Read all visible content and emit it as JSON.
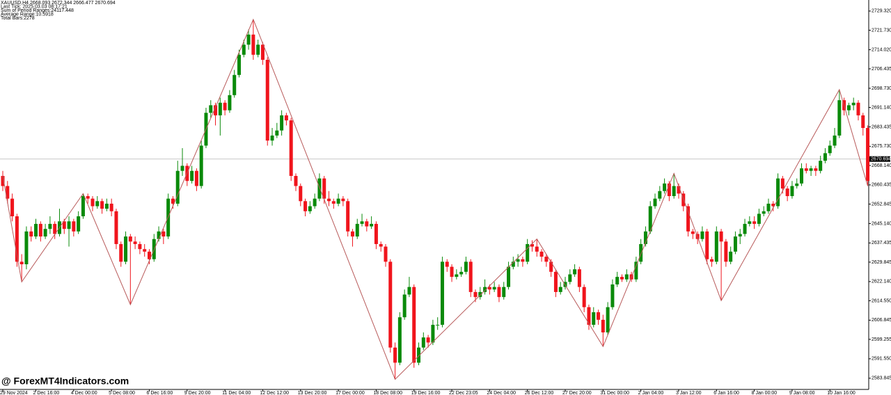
{
  "chart_data": {
    "type": "candlestick",
    "header": [
      "XAUUSD,H4  2668.093 2672.344 2666.477 2670.694",
      "Last Tick: 2025.03.03 08:17:21",
      "Sum of Period Ranges:24117.448",
      "Average Range:10.5918",
      "Total Bars:2278"
    ],
    "watermark": "@ ForexMT4Indicators.com",
    "up_color": "#0a8a0a",
    "down_color": "#f0141c",
    "zigzag_color": "#b85a5a",
    "current_price": 2670.694,
    "ylim": [
      2579.4,
      2733.7
    ],
    "yticks": [
      {
        "value": 2729.32,
        "label": "2729.320"
      },
      {
        "value": 2721.73,
        "label": "2721.730"
      },
      {
        "value": 2714.02,
        "label": "2714.020"
      },
      2706.435,
      {
        "value": 2698.73,
        "label": "2698.730"
      },
      {
        "value": 2691.14,
        "label": "2691.140"
      },
      2683.435,
      {
        "value": 2675.73,
        "label": "2675.730"
      },
      {
        "value": 2668.14,
        "label": "2668.140"
      },
      2660.435,
      2652.845,
      {
        "value": 2645.14,
        "label": "2645.140"
      },
      2637.435,
      2629.845,
      {
        "value": 2622.14,
        "label": "2622.140"
      },
      {
        "value": 2614.55,
        "label": "2614.550"
      },
      2606.845,
      2599.255,
      {
        "value": 2591.55,
        "label": "2591.550"
      },
      2583.845
    ],
    "xticks": [
      {
        "value": 0,
        "label": "29 Nov 2024"
      },
      {
        "value": 7,
        "label": "2 Dec 16:00"
      },
      {
        "value": 15,
        "label": "4 Dec 00:00"
      },
      {
        "value": 23,
        "label": "5 Dec 08:00"
      },
      {
        "value": 31,
        "label": "6 Dec 16:00"
      },
      {
        "value": 39,
        "label": "9 Dec 20:00"
      },
      {
        "value": 47,
        "label": "11 Dec 04:00"
      },
      {
        "value": 55,
        "label": "12 Dec 12:00"
      },
      {
        "value": 63,
        "label": "13 Dec 20:00"
      },
      {
        "value": 71,
        "label": "17 Dec 00:00"
      },
      {
        "value": 79,
        "label": "18 Dec 08:00"
      },
      {
        "value": 87,
        "label": "19 Dec 16:00"
      },
      {
        "value": 95,
        "label": "22 Dec 23:05"
      },
      {
        "value": 103,
        "label": "24 Dec 04:00"
      },
      {
        "value": 111,
        "label": "26 Dec 12:00"
      },
      {
        "value": 119,
        "label": "27 Dec 20:00"
      },
      {
        "value": 127,
        "label": "31 Dec 00:00"
      },
      {
        "value": 135,
        "label": "2 Jan 04:00"
      },
      {
        "value": 143,
        "label": "3 Jan 12:00"
      },
      {
        "value": 151,
        "label": "6 Jan 16:00"
      },
      {
        "value": 159,
        "label": "8 Jan 00:00"
      },
      {
        "value": 167,
        "label": "9 Jan 08:00"
      },
      {
        "value": 175,
        "label": "10 Jan 16:00"
      }
    ],
    "zigzag": {
      "x": [
        0,
        4,
        17,
        27,
        53,
        83,
        113,
        127,
        142,
        152,
        177,
        183
      ],
      "values": [
        2664,
        2622,
        2657,
        2613,
        2726,
        2583.4,
        2639,
        2596.4,
        2665,
        2614.6,
        2698.2,
        2660
      ]
    },
    "ohlc": [
      [
        2664,
        2666,
        2658,
        2660
      ],
      [
        2660,
        2662,
        2653,
        2655
      ],
      [
        2655,
        2657,
        2646,
        2648
      ],
      [
        2648,
        2649,
        2628,
        2630
      ],
      [
        2630,
        2633,
        2622,
        2629
      ],
      [
        2629,
        2644,
        2627,
        2642
      ],
      [
        2642,
        2644,
        2638,
        2640
      ],
      [
        2640,
        2647,
        2639,
        2645
      ],
      [
        2645,
        2646,
        2638,
        2640
      ],
      [
        2640,
        2645,
        2639,
        2643
      ],
      [
        2643,
        2648,
        2641,
        2645
      ],
      [
        2645,
        2646,
        2639,
        2641
      ],
      [
        2641,
        2651,
        2640,
        2646
      ],
      [
        2646,
        2647,
        2641,
        2643
      ],
      [
        2643,
        2648,
        2636,
        2646
      ],
      [
        2646,
        2647,
        2640,
        2642
      ],
      [
        2642,
        2650,
        2641,
        2648
      ],
      [
        2648,
        2657,
        2647,
        2656
      ],
      [
        2656,
        2657,
        2653,
        2655
      ],
      [
        2655,
        2656,
        2650,
        2652
      ],
      [
        2652,
        2656,
        2651,
        2654
      ],
      [
        2654,
        2655,
        2649,
        2651
      ],
      [
        2651,
        2655,
        2650,
        2653
      ],
      [
        2653,
        2655,
        2648,
        2650
      ],
      [
        2650,
        2651,
        2635,
        2637
      ],
      [
        2637,
        2638,
        2628,
        2630
      ],
      [
        2630,
        2642,
        2629,
        2640
      ],
      [
        2640,
        2641,
        2613,
        2638
      ],
      [
        2638,
        2640,
        2635,
        2637
      ],
      [
        2637,
        2638,
        2633,
        2635
      ],
      [
        2635,
        2637,
        2632,
        2634
      ],
      [
        2634,
        2635,
        2629,
        2631
      ],
      [
        2631,
        2641,
        2630,
        2639
      ],
      [
        2639,
        2644,
        2638,
        2642
      ],
      [
        2642,
        2643,
        2637,
        2640
      ],
      [
        2640,
        2657,
        2639,
        2655
      ],
      [
        2655,
        2656,
        2651,
        2653
      ],
      [
        2653,
        2670,
        2652,
        2666
      ],
      [
        2666,
        2675,
        2664,
        2668
      ],
      [
        2668,
        2669,
        2660,
        2662
      ],
      [
        2662,
        2668,
        2661,
        2666
      ],
      [
        2666,
        2667,
        2658,
        2660
      ],
      [
        2660,
        2678,
        2659,
        2676
      ],
      [
        2676,
        2691,
        2675,
        2689
      ],
      [
        2689,
        2694,
        2687,
        2692
      ],
      [
        2692,
        2693,
        2684,
        2688
      ],
      [
        2688,
        2695,
        2680,
        2693
      ],
      [
        2693,
        2694,
        2688,
        2690
      ],
      [
        2690,
        2698,
        2689,
        2696
      ],
      [
        2696,
        2706,
        2695,
        2704
      ],
      [
        2704,
        2714,
        2703,
        2712
      ],
      [
        2712,
        2718,
        2711,
        2716
      ],
      [
        2716,
        2722,
        2714,
        2720
      ],
      [
        2720,
        2726,
        2710,
        2712
      ],
      [
        2712,
        2718,
        2711,
        2716
      ],
      [
        2716,
        2717,
        2708,
        2710
      ],
      [
        2710,
        2711,
        2676,
        2678
      ],
      [
        2678,
        2683,
        2676,
        2680
      ],
      [
        2680,
        2685,
        2679,
        2682
      ],
      [
        2682,
        2690,
        2680,
        2688
      ],
      [
        2688,
        2689,
        2684,
        2686
      ],
      [
        2686,
        2687,
        2662,
        2664
      ],
      [
        2664,
        2665,
        2658,
        2660
      ],
      [
        2660,
        2661,
        2652,
        2654
      ],
      [
        2654,
        2655,
        2648,
        2650
      ],
      [
        2650,
        2654,
        2649,
        2652
      ],
      [
        2652,
        2657,
        2651,
        2655
      ],
      [
        2655,
        2665,
        2654,
        2663
      ],
      [
        2663,
        2664,
        2653,
        2655
      ],
      [
        2655,
        2658,
        2652,
        2654
      ],
      [
        2654,
        2655,
        2651,
        2653
      ],
      [
        2653,
        2657,
        2652,
        2655
      ],
      [
        2655,
        2656,
        2652,
        2654
      ],
      [
        2654,
        2655,
        2640,
        2642
      ],
      [
        2642,
        2643,
        2636,
        2640
      ],
      [
        2640,
        2647,
        2639,
        2645
      ],
      [
        2645,
        2649,
        2644,
        2646
      ],
      [
        2646,
        2647,
        2642,
        2644
      ],
      [
        2644,
        2648,
        2643,
        2645
      ],
      [
        2645,
        2646,
        2635,
        2637
      ],
      [
        2637,
        2638,
        2634,
        2636
      ],
      [
        2636,
        2637,
        2628,
        2630
      ],
      [
        2630,
        2631,
        2594,
        2596
      ],
      [
        2596,
        2598,
        2583.4,
        2590
      ],
      [
        2590,
        2610,
        2589,
        2608
      ],
      [
        2608,
        2619,
        2607,
        2617
      ],
      [
        2617,
        2624,
        2616,
        2620
      ],
      [
        2620,
        2621,
        2588,
        2590
      ],
      [
        2590,
        2598,
        2589,
        2596
      ],
      [
        2596,
        2602,
        2595,
        2600
      ],
      [
        2600,
        2601,
        2596,
        2598
      ],
      [
        2598,
        2607,
        2597,
        2605
      ],
      [
        2605,
        2608,
        2603,
        2605
      ],
      [
        2605,
        2632,
        2604,
        2630
      ],
      [
        2630,
        2631,
        2626,
        2628
      ],
      [
        2628,
        2629,
        2622,
        2624
      ],
      [
        2624,
        2627,
        2623,
        2625
      ],
      [
        2625,
        2628,
        2624,
        2626
      ],
      [
        2626,
        2632,
        2625,
        2630
      ],
      [
        2630,
        2631,
        2616,
        2618
      ],
      [
        2618,
        2619,
        2614,
        2616
      ],
      [
        2616,
        2620,
        2615,
        2618
      ],
      [
        2618,
        2623,
        2617,
        2620
      ],
      [
        2620,
        2621,
        2617,
        2619
      ],
      [
        2619,
        2622,
        2618,
        2620
      ],
      [
        2620,
        2621,
        2614,
        2616
      ],
      [
        2616,
        2622,
        2615,
        2620
      ],
      [
        2620,
        2630,
        2619,
        2628
      ],
      [
        2628,
        2632,
        2627,
        2630
      ],
      [
        2630,
        2633,
        2628,
        2631
      ],
      [
        2631,
        2632,
        2628,
        2630
      ],
      [
        2630,
        2639,
        2629,
        2637
      ],
      [
        2637,
        2638.5,
        2634,
        2636
      ],
      [
        2636,
        2639,
        2632,
        2634
      ],
      [
        2634,
        2635,
        2630,
        2632
      ],
      [
        2632,
        2633,
        2628,
        2630
      ],
      [
        2630,
        2631,
        2624,
        2626
      ],
      [
        2626,
        2627,
        2616,
        2618
      ],
      [
        2618,
        2622,
        2617,
        2620
      ],
      [
        2620,
        2624,
        2619,
        2622
      ],
      [
        2622,
        2627,
        2621,
        2625
      ],
      [
        2625,
        2629,
        2624,
        2627
      ],
      [
        2627,
        2628,
        2618,
        2620
      ],
      [
        2620,
        2621,
        2610,
        2612
      ],
      [
        2612,
        2613,
        2603,
        2605
      ],
      [
        2605,
        2612,
        2604,
        2610
      ],
      [
        2610,
        2611,
        2605,
        2607
      ],
      [
        2607,
        2609,
        2596.4,
        2602
      ],
      [
        2602,
        2614,
        2601,
        2612
      ],
      [
        2612,
        2623,
        2611,
        2621
      ],
      [
        2621,
        2626,
        2620,
        2624
      ],
      [
        2624,
        2625,
        2622,
        2623
      ],
      [
        2623,
        2627,
        2622,
        2625
      ],
      [
        2625,
        2626,
        2622,
        2623
      ],
      [
        2623,
        2632,
        2622,
        2630
      ],
      [
        2630,
        2639,
        2629,
        2637
      ],
      [
        2637,
        2644,
        2636,
        2642
      ],
      [
        2642,
        2654,
        2641,
        2652
      ],
      [
        2652,
        2657,
        2651,
        2655
      ],
      [
        2655,
        2660,
        2654,
        2658
      ],
      [
        2658,
        2663,
        2657,
        2661
      ],
      [
        2661,
        2662,
        2654,
        2656
      ],
      [
        2656,
        2665,
        2655,
        2660
      ],
      [
        2660,
        2661,
        2655,
        2657
      ],
      [
        2657,
        2658,
        2650,
        2652
      ],
      [
        2652,
        2653,
        2640,
        2642
      ],
      [
        2642,
        2643,
        2639,
        2641
      ],
      [
        2641,
        2642,
        2637,
        2639
      ],
      [
        2639,
        2644,
        2638,
        2642
      ],
      [
        2642,
        2643,
        2629,
        2631
      ],
      [
        2631,
        2632,
        2628,
        2630
      ],
      [
        2630,
        2644,
        2629,
        2642
      ],
      [
        2642,
        2643,
        2614.6,
        2638
      ],
      [
        2638,
        2639,
        2628,
        2630
      ],
      [
        2630,
        2636,
        2629,
        2634
      ],
      [
        2634,
        2642,
        2633,
        2640
      ],
      [
        2640,
        2643,
        2637,
        2641
      ],
      [
        2641,
        2647,
        2640,
        2645
      ],
      [
        2645,
        2648,
        2644,
        2646
      ],
      [
        2646,
        2648,
        2643,
        2645
      ],
      [
        2645,
        2651,
        2644,
        2649
      ],
      [
        2649,
        2652,
        2648,
        2650
      ],
      [
        2650,
        2655,
        2649,
        2653
      ],
      [
        2653,
        2654,
        2650,
        2652
      ],
      [
        2652,
        2665,
        2651,
        2663
      ],
      [
        2663,
        2664,
        2657,
        2659
      ],
      [
        2659,
        2660,
        2654,
        2656
      ],
      [
        2656,
        2662,
        2655,
        2660
      ],
      [
        2660,
        2663,
        2659,
        2661
      ],
      [
        2661,
        2669,
        2660,
        2667
      ],
      [
        2667,
        2669,
        2665,
        2666
      ],
      [
        2666,
        2668,
        2664,
        2667
      ],
      [
        2667,
        2668,
        2664,
        2666
      ],
      [
        2666,
        2672,
        2665,
        2670
      ],
      [
        2670,
        2675,
        2669,
        2673
      ],
      [
        2673,
        2678,
        2672,
        2676
      ],
      [
        2676,
        2683,
        2675,
        2680
      ],
      [
        2680,
        2698.2,
        2679,
        2694
      ],
      [
        2694,
        2695,
        2688,
        2690
      ],
      [
        2690,
        2693,
        2688,
        2692
      ],
      [
        2692,
        2695,
        2690,
        2693
      ],
      [
        2693,
        2694,
        2686,
        2688
      ],
      [
        2688,
        2689,
        2680,
        2683
      ],
      [
        2683,
        2684,
        2660,
        2662
      ]
    ]
  }
}
